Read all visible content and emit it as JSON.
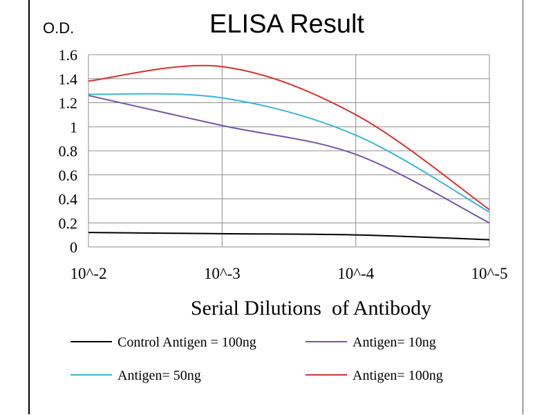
{
  "chart_data": {
    "type": "line",
    "title": "ELISA Result",
    "ylabel": "O.D.",
    "xlabel": "Serial Dilutions  of Antibody",
    "x_categories": [
      "10^-2",
      "10^-3",
      "10^-4",
      "10^-5"
    ],
    "y_ticks": [
      "0",
      "0.2",
      "0.4",
      "0.6",
      "0.8",
      "1",
      "1.2",
      "1.4",
      "1.6"
    ],
    "ylim": [
      0,
      1.6
    ],
    "grid": true,
    "series": [
      {
        "name": "Control Antigen = 100ng",
        "color": "#000000",
        "values": [
          0.12,
          0.11,
          0.1,
          0.06
        ]
      },
      {
        "name": "Antigen= 10ng",
        "color": "#7355a8",
        "values": [
          1.26,
          1.01,
          0.77,
          0.2
        ]
      },
      {
        "name": "Antigen= 50ng",
        "color": "#3ab4d8",
        "values": [
          1.27,
          1.24,
          0.93,
          0.29
        ]
      },
      {
        "name": "Antigen= 100ng",
        "color": "#d9302c",
        "values": [
          1.38,
          1.5,
          1.1,
          0.31
        ]
      }
    ]
  }
}
